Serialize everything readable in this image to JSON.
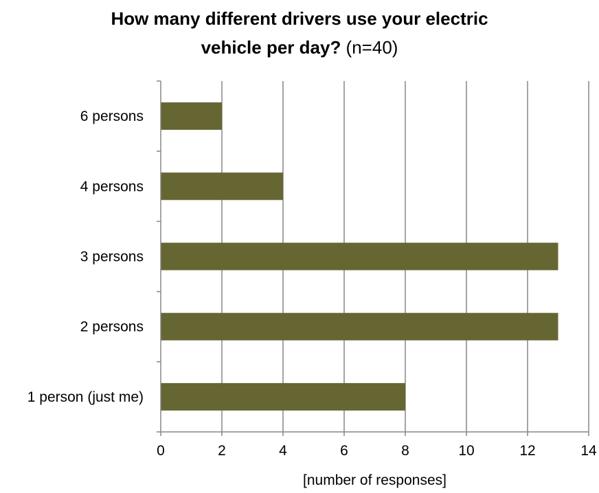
{
  "chart_data": {
    "type": "bar",
    "orientation": "horizontal",
    "title_main": "How many different drivers use your electric",
    "title_line2_bold": "vehicle per day?",
    "title_line2_rest": " (n=40)",
    "categories": [
      "1 person (just me)",
      "2 persons",
      "3 persons",
      "4 persons",
      "6 persons"
    ],
    "values": [
      8,
      13,
      13,
      4,
      2
    ],
    "xlabel": "[number of responses]",
    "ylabel": "",
    "xlim": [
      0,
      14
    ],
    "xticks": [
      "0",
      "2",
      "4",
      "6",
      "8",
      "10",
      "12",
      "14"
    ],
    "grid": "vertical",
    "legend": "none",
    "bar_color": "#666633",
    "grid_color": "#868686"
  }
}
